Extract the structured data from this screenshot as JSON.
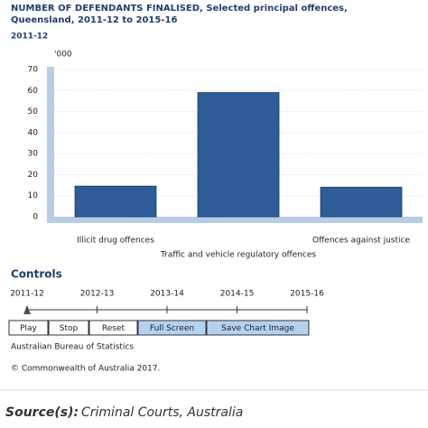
{
  "chart_data": {
    "type": "bar",
    "title": "NUMBER OF DEFENDANTS FINALISED, Selected principal offences, Queensland, 2011-12 to 2015-16",
    "subtitle": "2011-12",
    "y_unit": "'000",
    "categories": [
      "Illicit drug offences",
      "Traffic and vehicle regulatory offences",
      "Offences against justice"
    ],
    "values": [
      14.5,
      59,
      14
    ],
    "color": "#2f5d99",
    "ylim": [
      0,
      70
    ],
    "yticks": [
      0,
      10,
      20,
      30,
      40,
      50,
      60,
      70
    ],
    "grid": true
  },
  "controls": {
    "heading": "Controls",
    "periods": [
      "2011-12",
      "2012-13",
      "2013-14",
      "2014-15",
      "2015-16"
    ],
    "buttons": [
      "Play",
      "Stop",
      "Reset",
      "Full Screen",
      "Save Chart Image"
    ]
  },
  "footer": {
    "publisher": "Australian Bureau of Statistics",
    "copyright": "© Commonwealth of Australia 2017."
  },
  "source": {
    "label": "Source(s):",
    "text": "Criminal Courts, Australia"
  }
}
